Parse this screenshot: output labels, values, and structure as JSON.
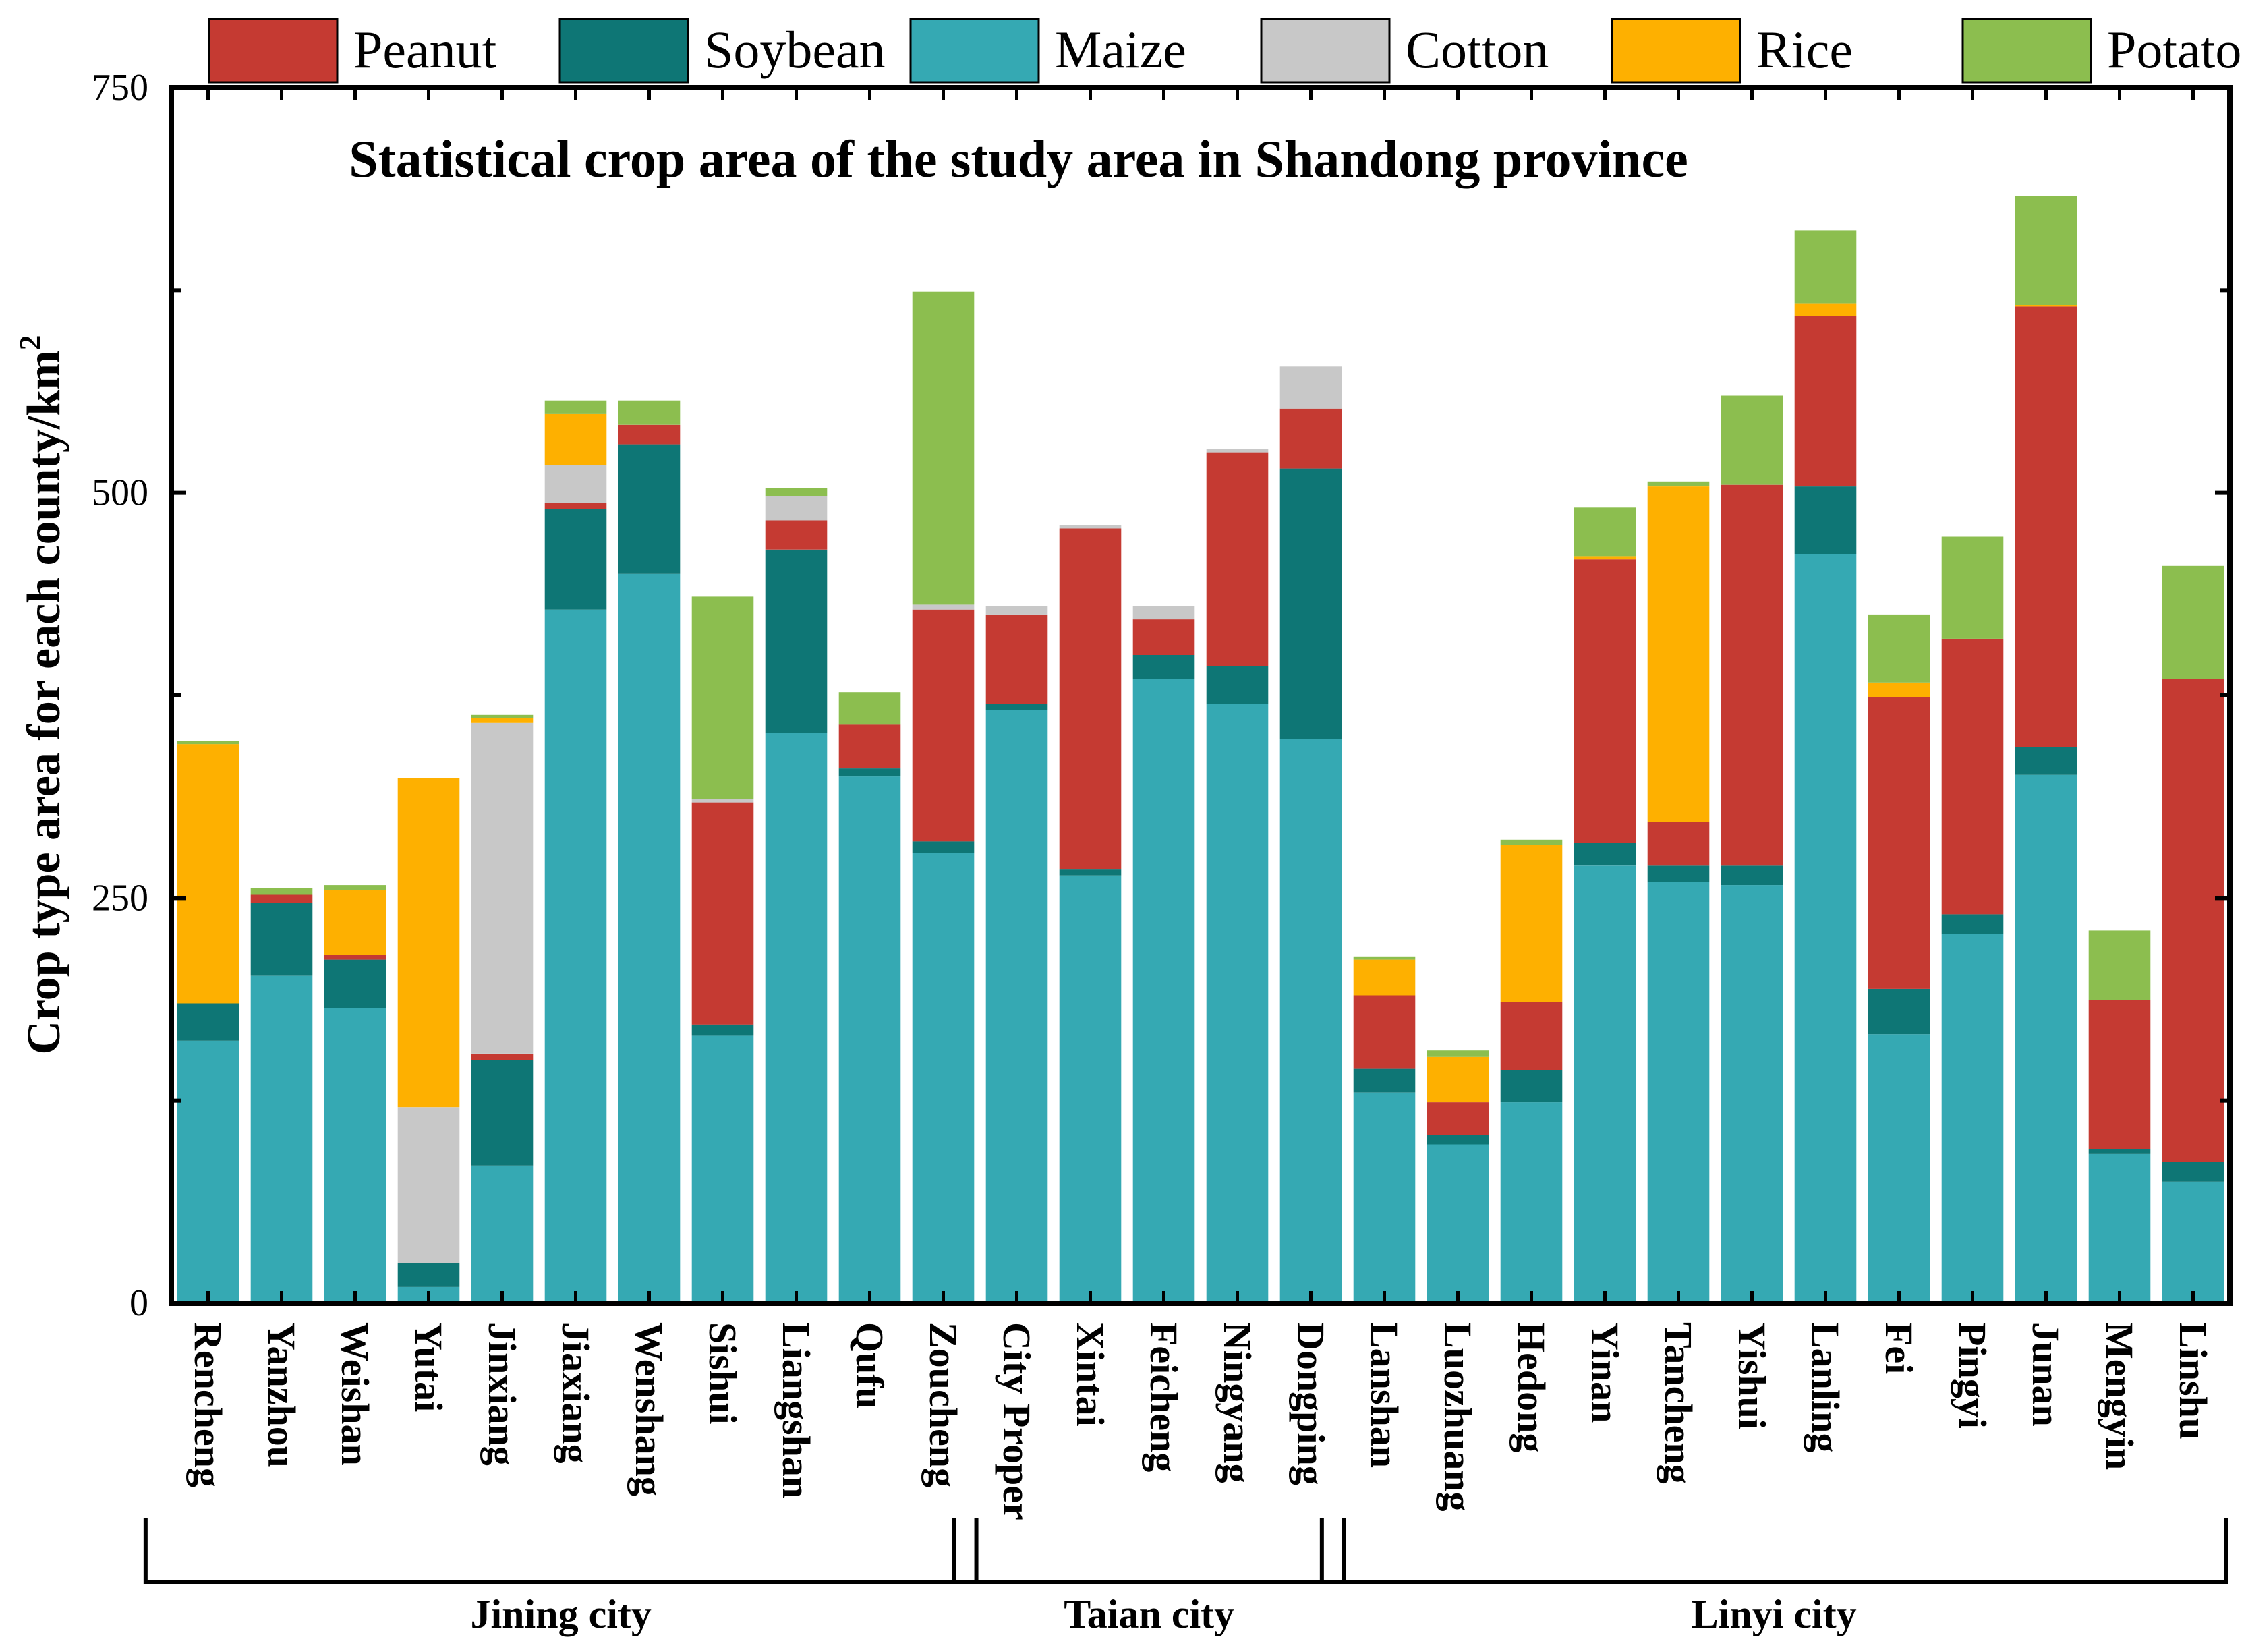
{
  "chart_data": {
    "type": "bar",
    "stacked": true,
    "title": "Statistical crop area of the study area in Shandong province",
    "xlabel": "",
    "ylabel": "Crop type area for each county/km",
    "ylabel_superscript": "2",
    "ylim": [
      0,
      750
    ],
    "yticks": [
      0,
      250,
      500,
      750
    ],
    "legend_position": "top",
    "colors": {
      "Peanut": "#C53A32",
      "Soybean": "#0E7675",
      "Maize": "#35A9B3",
      "Cotton": "#C8C8C8",
      "Rice": "#FEB000",
      "Potato": "#8CBE4F"
    },
    "categories": [
      "Rencheng",
      "Yanzhou",
      "Weishan",
      "Yutai",
      "Jinxiang",
      "Jiaxiang",
      "Wenshang",
      "Sishui",
      "Liangshan",
      "Qufu",
      "Zoucheng",
      "City Proper",
      "Xintai",
      "Feicheng",
      "Ningyang",
      "Dongping",
      "Lanshan",
      "Luozhuang",
      "Hedong",
      "Yinan",
      "Tancheng",
      "Yishui",
      "Lanling",
      "Fei",
      "Pingyi",
      "Junan",
      "Mengyin",
      "Linshu"
    ],
    "series": [
      {
        "name": "Maize",
        "values": [
          162,
          202,
          182,
          10,
          85,
          428,
          450,
          165,
          352,
          325,
          278,
          366,
          264,
          385,
          370,
          348,
          130,
          98,
          124,
          270,
          260,
          258,
          462,
          166,
          228,
          326,
          92,
          75
        ]
      },
      {
        "name": "Soybean",
        "values": [
          23,
          45,
          30,
          15,
          65,
          62,
          80,
          7,
          113,
          5,
          7,
          4,
          4,
          15,
          23,
          167,
          15,
          6,
          20,
          14,
          10,
          12,
          42,
          28,
          12,
          17,
          3,
          12
        ]
      },
      {
        "name": "Peanut",
        "values": [
          0,
          5,
          3,
          0,
          4,
          4,
          12,
          137,
          18,
          27,
          143,
          55,
          210,
          22,
          132,
          37,
          45,
          20,
          42,
          175,
          27,
          235,
          105,
          180,
          170,
          272,
          92,
          298
        ]
      },
      {
        "name": "Cotton",
        "values": [
          0,
          0,
          0,
          96,
          204,
          23,
          0,
          2,
          15,
          0,
          3,
          5,
          2,
          8,
          2,
          26,
          0,
          0,
          0,
          0,
          0,
          0,
          0,
          0,
          0,
          0,
          0,
          0
        ]
      },
      {
        "name": "Rice",
        "values": [
          160,
          0,
          40,
          203,
          3,
          32,
          0,
          0,
          0,
          0,
          0,
          0,
          0,
          0,
          0,
          0,
          22,
          28,
          97,
          2,
          207,
          0,
          8,
          9,
          0,
          1,
          0,
          0
        ]
      },
      {
        "name": "Potato",
        "values": [
          2,
          4,
          3,
          0,
          2,
          8,
          15,
          125,
          5,
          20,
          193,
          0,
          0,
          0,
          0,
          0,
          2,
          4,
          3,
          30,
          3,
          55,
          45,
          42,
          63,
          67,
          43,
          70
        ]
      }
    ],
    "groups": [
      {
        "name": "Jining city",
        "from": 0,
        "to": 10
      },
      {
        "name": "Taian city",
        "from": 11,
        "to": 15
      },
      {
        "name": "Linyi city",
        "from": 16,
        "to": 27
      }
    ]
  }
}
